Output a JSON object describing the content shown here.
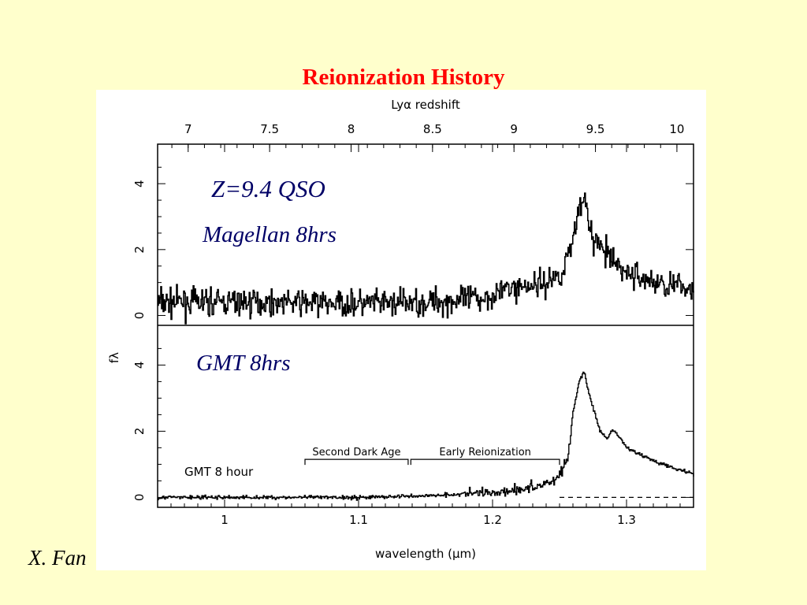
{
  "slide": {
    "title": "Reionization History",
    "author": "X. Fan"
  },
  "colors": {
    "background": "#ffffcc",
    "title": "#ff0000",
    "annotation": "#000066",
    "trace": "#000000"
  },
  "chart_data": {
    "type": "line",
    "x_axis": {
      "label": "wavelength (μm)",
      "range": [
        0.95,
        1.35
      ],
      "ticks": [
        1,
        1.1,
        1.2,
        1.3
      ],
      "tick_labels": [
        "1",
        "1.1",
        "1.2",
        "1.3"
      ]
    },
    "top_axis": {
      "label": "Lyα redshift",
      "ticks": [
        7,
        7.5,
        8,
        8.5,
        9,
        9.5,
        10
      ],
      "tick_labels": [
        "7",
        "7.5",
        "8",
        "8.5",
        "9",
        "9.5",
        "10"
      ]
    },
    "y_axis": {
      "label": "fλ",
      "range": [
        -0.3,
        5.2
      ],
      "ticks": [
        0,
        2,
        4
      ],
      "tick_labels": [
        "0",
        "2",
        "4"
      ]
    },
    "annotations": {
      "qso": "Z=9.4 QSO",
      "magellan": "Magellan 8hrs",
      "gmt": "GMT 8hrs"
    },
    "panels": [
      {
        "name": "Magellan 8hrs",
        "noise_sigma": 0.35,
        "x": [
          0.95,
          1.0,
          1.05,
          1.1,
          1.15,
          1.19,
          1.21,
          1.24,
          1.252,
          1.26,
          1.265,
          1.268,
          1.272,
          1.28,
          1.29,
          1.3,
          1.32,
          1.35
        ],
        "y": [
          0.4,
          0.4,
          0.4,
          0.35,
          0.4,
          0.5,
          0.8,
          1.0,
          1.3,
          2.4,
          3.4,
          3.8,
          2.5,
          2.1,
          1.6,
          1.3,
          1.0,
          0.8
        ]
      },
      {
        "name": "GMT 8 hour",
        "legend": "GMT 8 hour",
        "noise_sigma": 0.05,
        "x": [
          0.95,
          1.0,
          1.1,
          1.15,
          1.2,
          1.23,
          1.245,
          1.25,
          1.256,
          1.26,
          1.265,
          1.268,
          1.272,
          1.28,
          1.285,
          1.29,
          1.3,
          1.32,
          1.35
        ],
        "y": [
          0.0,
          0.0,
          0.0,
          0.05,
          0.15,
          0.3,
          0.5,
          0.7,
          1.2,
          2.6,
          3.6,
          3.8,
          3.1,
          2.0,
          1.75,
          2.05,
          1.5,
          1.1,
          0.7
        ],
        "reference_line": {
          "y": 0,
          "style": "dashed",
          "from": 1.25,
          "to": 1.35
        },
        "brackets": [
          {
            "label": "Second Dark Age",
            "from": 1.06,
            "to": 1.137,
            "y": 1.15
          },
          {
            "label": "Early Reionization",
            "from": 1.139,
            "to": 1.25,
            "y": 1.15
          }
        ]
      }
    ]
  }
}
